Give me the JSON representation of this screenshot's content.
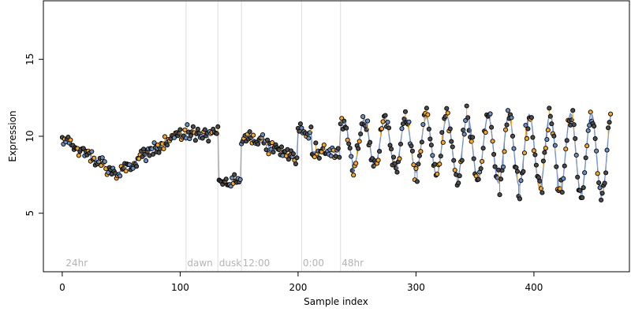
{
  "chart_data": {
    "type": "scatter",
    "xlabel": "Sample index",
    "ylabel": "Expression",
    "xlim": [
      -16,
      481
    ],
    "ylim": [
      1.2,
      18.8
    ],
    "x_ticks": [
      0,
      100,
      200,
      300,
      400
    ],
    "y_ticks": [
      5,
      10,
      15
    ],
    "grid": false,
    "legend": "none",
    "colors": {
      "points_fill_dark": "#4d4d4d",
      "points_fill_orange": "#f5a623",
      "points_fill_blue": "#6c8ebf",
      "point_stroke": "#000000",
      "fit_blue": "#6f8fcf",
      "fit_orange": "#f5a623",
      "fit_gray": "#aaaaaa",
      "markers": "#dddddd",
      "annotations": "#b3b3b3"
    },
    "annotations": [
      {
        "text": "24hr",
        "x": 3,
        "marker_x": null
      },
      {
        "text": "dawn",
        "x": 106,
        "marker_x": 105
      },
      {
        "text": "dusk",
        "x": 133,
        "marker_x": 132
      },
      {
        "text": "12:00",
        "x": 153,
        "marker_x": 152
      },
      {
        "text": "0:00",
        "x": 204,
        "marker_x": 203
      },
      {
        "text": "48hr",
        "x": 237,
        "marker_x": 236
      }
    ],
    "segments": [
      {
        "start": 0,
        "end": 132,
        "kind": "day1"
      },
      {
        "start": 133,
        "end": 151,
        "kind": "dip"
      },
      {
        "start": 152,
        "end": 235,
        "kind": "mid"
      },
      {
        "start": 236,
        "end": 465,
        "kind": "osc"
      }
    ]
  }
}
